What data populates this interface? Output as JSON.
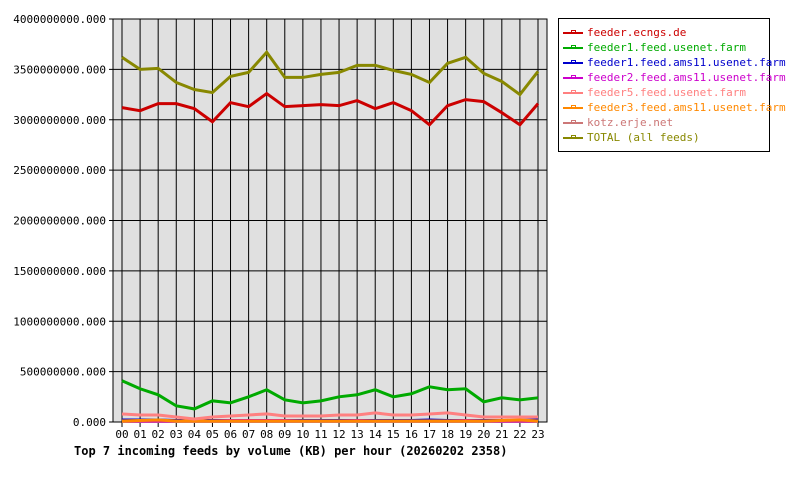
{
  "chart_data": {
    "type": "line",
    "title": "Top 7 incoming feeds by volume (KB) per hour (20260202 2358)",
    "xlabel": "",
    "ylabel": "",
    "categories": [
      "00",
      "01",
      "02",
      "03",
      "04",
      "05",
      "06",
      "07",
      "08",
      "09",
      "10",
      "11",
      "12",
      "13",
      "14",
      "15",
      "16",
      "17",
      "18",
      "19",
      "20",
      "21",
      "22",
      "23"
    ],
    "ylim": [
      0,
      4000000000
    ],
    "yticks": [
      "0.000",
      "500000000.000",
      "1000000000.000",
      "1500000000.000",
      "2000000000.000",
      "2500000000.000",
      "3000000000.000",
      "3500000000.000",
      "4000000000.000"
    ],
    "grid": true,
    "legend_position": "right",
    "series": [
      {
        "name": "feeder.ecngs.de",
        "color": "#cc0000",
        "values": [
          3120000000,
          3090000000,
          3160000000,
          3160000000,
          3110000000,
          2980000000,
          3170000000,
          3130000000,
          3260000000,
          3130000000,
          3140000000,
          3150000000,
          3140000000,
          3190000000,
          3110000000,
          3170000000,
          3090000000,
          2950000000,
          3140000000,
          3200000000,
          3180000000,
          3070000000,
          2950000000,
          3160000000
        ]
      },
      {
        "name": "feeder1.feed.usenet.farm",
        "color": "#00aa00",
        "values": [
          410000000,
          330000000,
          270000000,
          160000000,
          130000000,
          210000000,
          190000000,
          250000000,
          320000000,
          220000000,
          190000000,
          210000000,
          250000000,
          270000000,
          320000000,
          250000000,
          280000000,
          350000000,
          320000000,
          330000000,
          200000000,
          240000000,
          220000000,
          240000000
        ]
      },
      {
        "name": "feeder1.feed.ams11.usenet.farm",
        "color": "#0000cc",
        "values": [
          20000000,
          20000000,
          20000000,
          15000000,
          15000000,
          15000000,
          15000000,
          15000000,
          15000000,
          15000000,
          15000000,
          15000000,
          15000000,
          15000000,
          15000000,
          15000000,
          15000000,
          20000000,
          15000000,
          15000000,
          15000000,
          15000000,
          15000000,
          20000000
        ]
      },
      {
        "name": "feeder2.feed.ams11.usenet.farm",
        "color": "#cc00cc",
        "values": [
          10000000,
          10000000,
          10000000,
          10000000,
          10000000,
          10000000,
          15000000,
          15000000,
          15000000,
          15000000,
          10000000,
          10000000,
          10000000,
          15000000,
          10000000,
          10000000,
          10000000,
          10000000,
          10000000,
          15000000,
          10000000,
          10000000,
          10000000,
          10000000
        ]
      },
      {
        "name": "feeder5.feed.usenet.farm",
        "color": "#ff8080",
        "values": [
          80000000,
          70000000,
          70000000,
          50000000,
          30000000,
          50000000,
          60000000,
          70000000,
          80000000,
          60000000,
          60000000,
          60000000,
          70000000,
          70000000,
          90000000,
          70000000,
          70000000,
          80000000,
          90000000,
          70000000,
          50000000,
          50000000,
          50000000,
          50000000
        ]
      },
      {
        "name": "feeder3.feed.ams11.usenet.farm",
        "color": "#ff8800",
        "values": [
          10000000,
          15000000,
          20000000,
          10000000,
          10000000,
          10000000,
          10000000,
          10000000,
          10000000,
          10000000,
          10000000,
          10000000,
          10000000,
          10000000,
          10000000,
          10000000,
          10000000,
          10000000,
          10000000,
          10000000,
          10000000,
          15000000,
          20000000,
          10000000
        ]
      },
      {
        "name": "kotz.erje.net",
        "color": "#cc7777",
        "values": [
          5000000,
          5000000,
          5000000,
          5000000,
          5000000,
          5000000,
          5000000,
          5000000,
          5000000,
          5000000,
          5000000,
          5000000,
          5000000,
          5000000,
          5000000,
          5000000,
          5000000,
          5000000,
          5000000,
          5000000,
          5000000,
          5000000,
          5000000,
          5000000
        ]
      },
      {
        "name": "TOTAL (all feeds)",
        "color": "#888800",
        "values": [
          3620000000,
          3500000000,
          3510000000,
          3370000000,
          3300000000,
          3270000000,
          3430000000,
          3470000000,
          3670000000,
          3420000000,
          3420000000,
          3450000000,
          3470000000,
          3540000000,
          3540000000,
          3490000000,
          3450000000,
          3370000000,
          3560000000,
          3620000000,
          3460000000,
          3380000000,
          3250000000,
          3480000000
        ]
      }
    ]
  }
}
